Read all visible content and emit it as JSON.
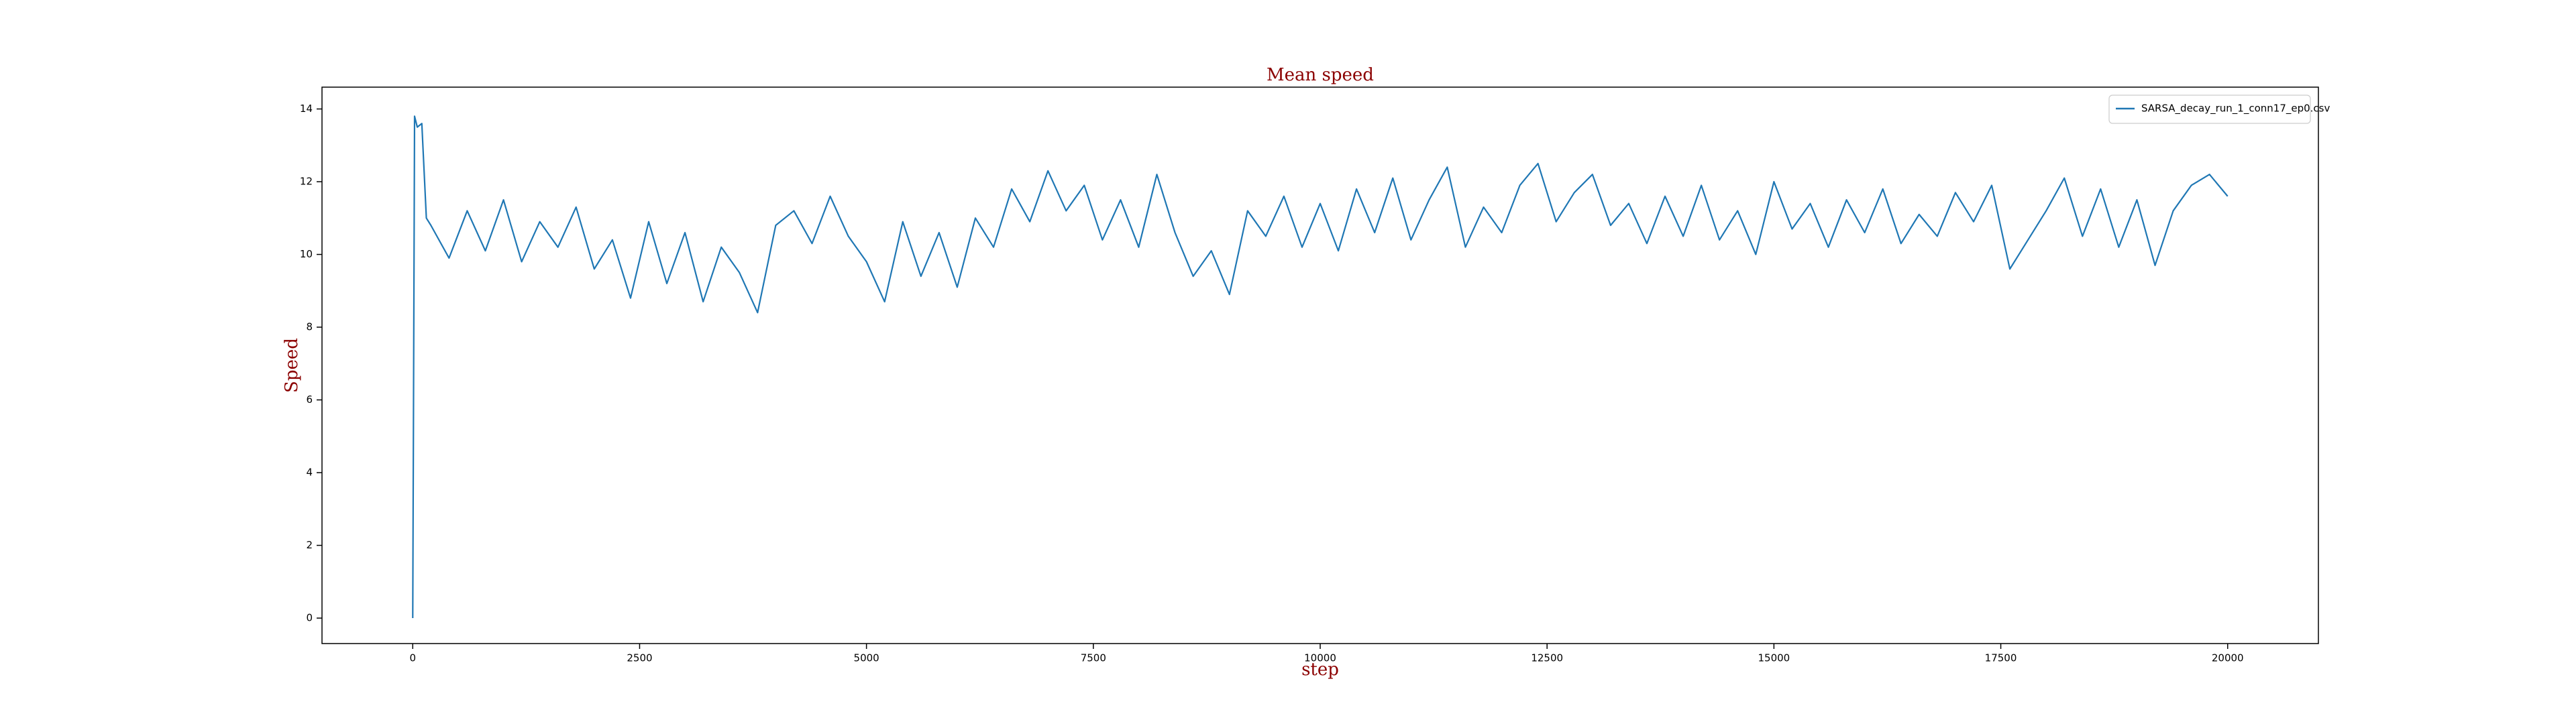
{
  "chart_data": {
    "type": "line",
    "title": "Mean speed",
    "x_label": "step",
    "y_label": "Speed",
    "x": [
      0,
      20,
      50,
      100,
      150,
      200,
      400,
      600,
      800,
      1000,
      1200,
      1400,
      1600,
      1800,
      2000,
      2200,
      2400,
      2600,
      2800,
      3000,
      3200,
      3400,
      3600,
      3800,
      4000,
      4200,
      4400,
      4600,
      4800,
      5000,
      5200,
      5400,
      5600,
      5800,
      6000,
      6200,
      6400,
      6600,
      6800,
      7000,
      7200,
      7400,
      7600,
      7800,
      8000,
      8200,
      8400,
      8600,
      8800,
      9000,
      9200,
      9400,
      9600,
      9800,
      10000,
      10200,
      10400,
      10600,
      10800,
      11000,
      11200,
      11400,
      11600,
      11800,
      12000,
      12200,
      12400,
      12600,
      12800,
      13000,
      13200,
      13400,
      13600,
      13800,
      14000,
      14200,
      14400,
      14600,
      14800,
      15000,
      15200,
      15400,
      15600,
      15800,
      16000,
      16200,
      16400,
      16600,
      16800,
      17000,
      17200,
      17400,
      17600,
      17800,
      18000,
      18200,
      18400,
      18600,
      18800,
      19000,
      19200,
      19400,
      19600,
      19800,
      20000
    ],
    "series": [
      {
        "name": "SARSA_decay_run_1_conn17_ep0.csv",
        "color": "#1f77b4",
        "values": [
          0,
          13.8,
          13.5,
          13.6,
          11.0,
          10.8,
          9.9,
          11.2,
          10.1,
          11.5,
          9.8,
          10.9,
          10.2,
          11.3,
          9.6,
          10.4,
          8.8,
          10.9,
          9.2,
          10.6,
          8.7,
          10.2,
          9.5,
          8.4,
          10.8,
          11.2,
          10.3,
          11.6,
          10.5,
          9.8,
          8.7,
          10.9,
          9.4,
          10.6,
          9.1,
          11.0,
          10.2,
          11.8,
          10.9,
          12.3,
          11.2,
          11.9,
          10.4,
          11.5,
          10.2,
          12.2,
          10.6,
          9.4,
          10.1,
          8.9,
          11.2,
          10.5,
          11.6,
          10.2,
          11.4,
          10.1,
          11.8,
          10.6,
          12.1,
          10.4,
          11.5,
          12.4,
          10.2,
          11.3,
          10.6,
          11.9,
          12.5,
          10.9,
          11.7,
          12.2,
          10.8,
          11.4,
          10.3,
          11.6,
          10.5,
          11.9,
          10.4,
          11.2,
          10.0,
          12.0,
          10.7,
          11.4,
          10.2,
          11.5,
          10.6,
          11.8,
          10.3,
          11.1,
          10.5,
          11.7,
          10.9,
          11.9,
          9.6,
          10.4,
          11.2,
          12.1,
          10.5,
          11.8,
          10.2,
          11.5,
          9.7,
          11.2,
          11.9,
          12.2,
          11.6
        ]
      }
    ],
    "xlim": [
      -1000,
      21000
    ],
    "ylim": [
      -0.7,
      14.6
    ],
    "xticks": [
      0,
      2500,
      5000,
      7500,
      10000,
      12500,
      15000,
      17500,
      20000
    ],
    "yticks": [
      0,
      2,
      4,
      6,
      8,
      10,
      12,
      14
    ],
    "legend": "upper right"
  }
}
